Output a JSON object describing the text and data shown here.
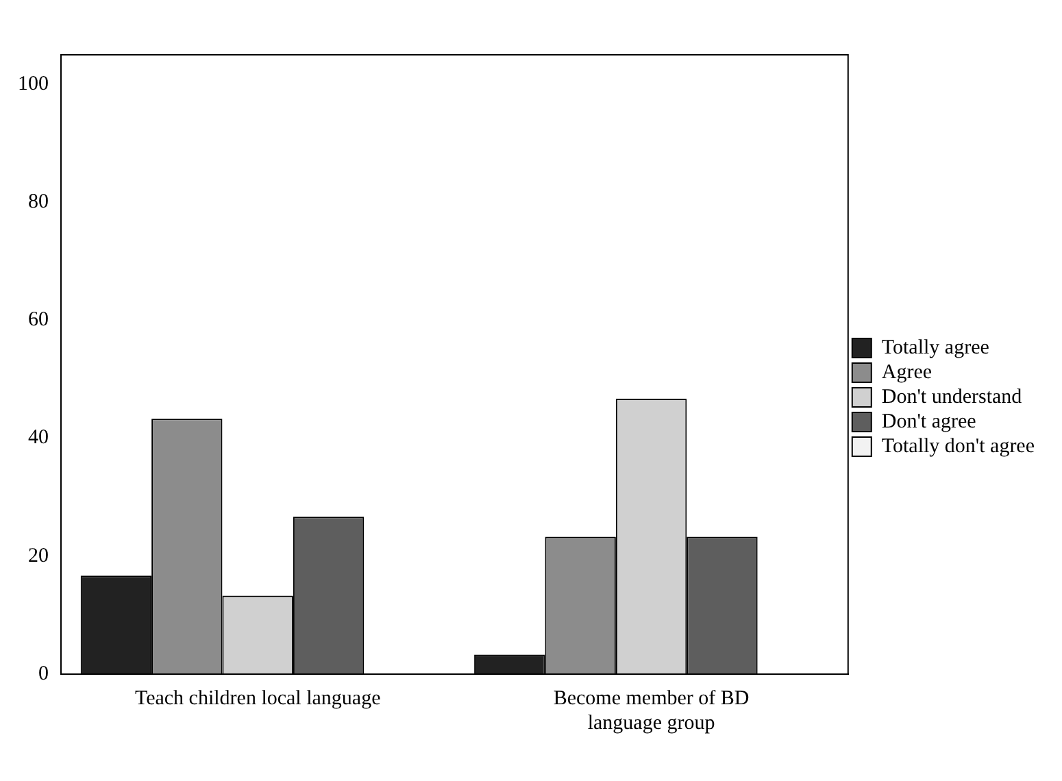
{
  "chart_data": {
    "type": "bar",
    "categories": [
      "Teach children local language",
      "Become member of BD language group"
    ],
    "series": [
      {
        "name": "Totally agree",
        "color": "#222222",
        "values": [
          16.7,
          3.3
        ]
      },
      {
        "name": "Agree",
        "color": "#8c8c8c",
        "values": [
          43.3,
          23.3
        ]
      },
      {
        "name": "Don't understand",
        "color": "#d0d0d0",
        "values": [
          13.3,
          46.7
        ]
      },
      {
        "name": "Don't agree",
        "color": "#5e5e5e",
        "values": [
          26.7,
          23.3
        ]
      },
      {
        "name": "Totally don't agree",
        "color": "#f2f2f2",
        "values": [
          0,
          0
        ]
      }
    ],
    "ylim": [
      0,
      105
    ],
    "yticks": [
      0,
      20,
      40,
      60,
      80,
      100
    ],
    "grid": false,
    "legend": "right"
  }
}
